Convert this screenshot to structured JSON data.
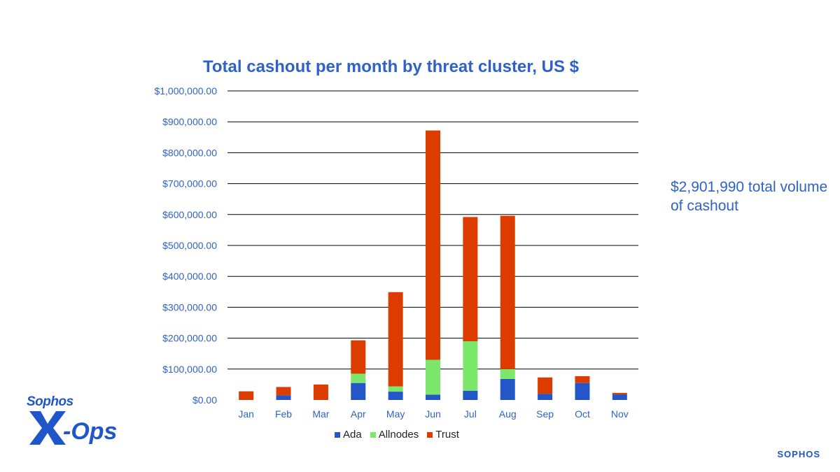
{
  "title": "Total cashout per month by threat cluster, US $",
  "callout": "$2,901,990 total volume of cashout",
  "logo": {
    "line1": "Sophos",
    "line2": "-Ops"
  },
  "brand": "SOPHOS",
  "colors": {
    "Ada": "#2456c8",
    "Allnodes": "#7be86c",
    "Trust": "#dd3c00",
    "axis_text": "#2f62c8",
    "grid": "#000000"
  },
  "chart_data": {
    "type": "bar",
    "stacked": true,
    "title": "Total cashout per month by threat cluster, US $",
    "xlabel": "",
    "ylabel": "",
    "ylim": [
      0,
      1000000
    ],
    "y_ticks": [
      "$0.00",
      "$100,000.00",
      "$200,000.00",
      "$300,000.00",
      "$400,000.00",
      "$500,000.00",
      "$600,000.00",
      "$700,000.00",
      "$800,000.00",
      "$900,000.00",
      "$1,000,000.00"
    ],
    "y_tick_values": [
      0,
      100000,
      200000,
      300000,
      400000,
      500000,
      600000,
      700000,
      800000,
      900000,
      1000000
    ],
    "categories": [
      "Jan",
      "Feb",
      "Mar",
      "Apr",
      "May",
      "Jun",
      "Jul",
      "Aug",
      "Sep",
      "Oct",
      "Nov"
    ],
    "series": [
      {
        "name": "Ada",
        "values": [
          0,
          15000,
          0,
          55000,
          27000,
          17000,
          30000,
          68000,
          20000,
          55000,
          18000
        ]
      },
      {
        "name": "Allnodes",
        "values": [
          0,
          0,
          0,
          30000,
          17000,
          113000,
          160000,
          32000,
          0,
          0,
          0
        ]
      },
      {
        "name": "Trust",
        "values": [
          28000,
          27000,
          50000,
          108000,
          305000,
          742000,
          402000,
          496000,
          53000,
          22000,
          5000
        ]
      }
    ],
    "grid": true,
    "legend": "bottom"
  }
}
